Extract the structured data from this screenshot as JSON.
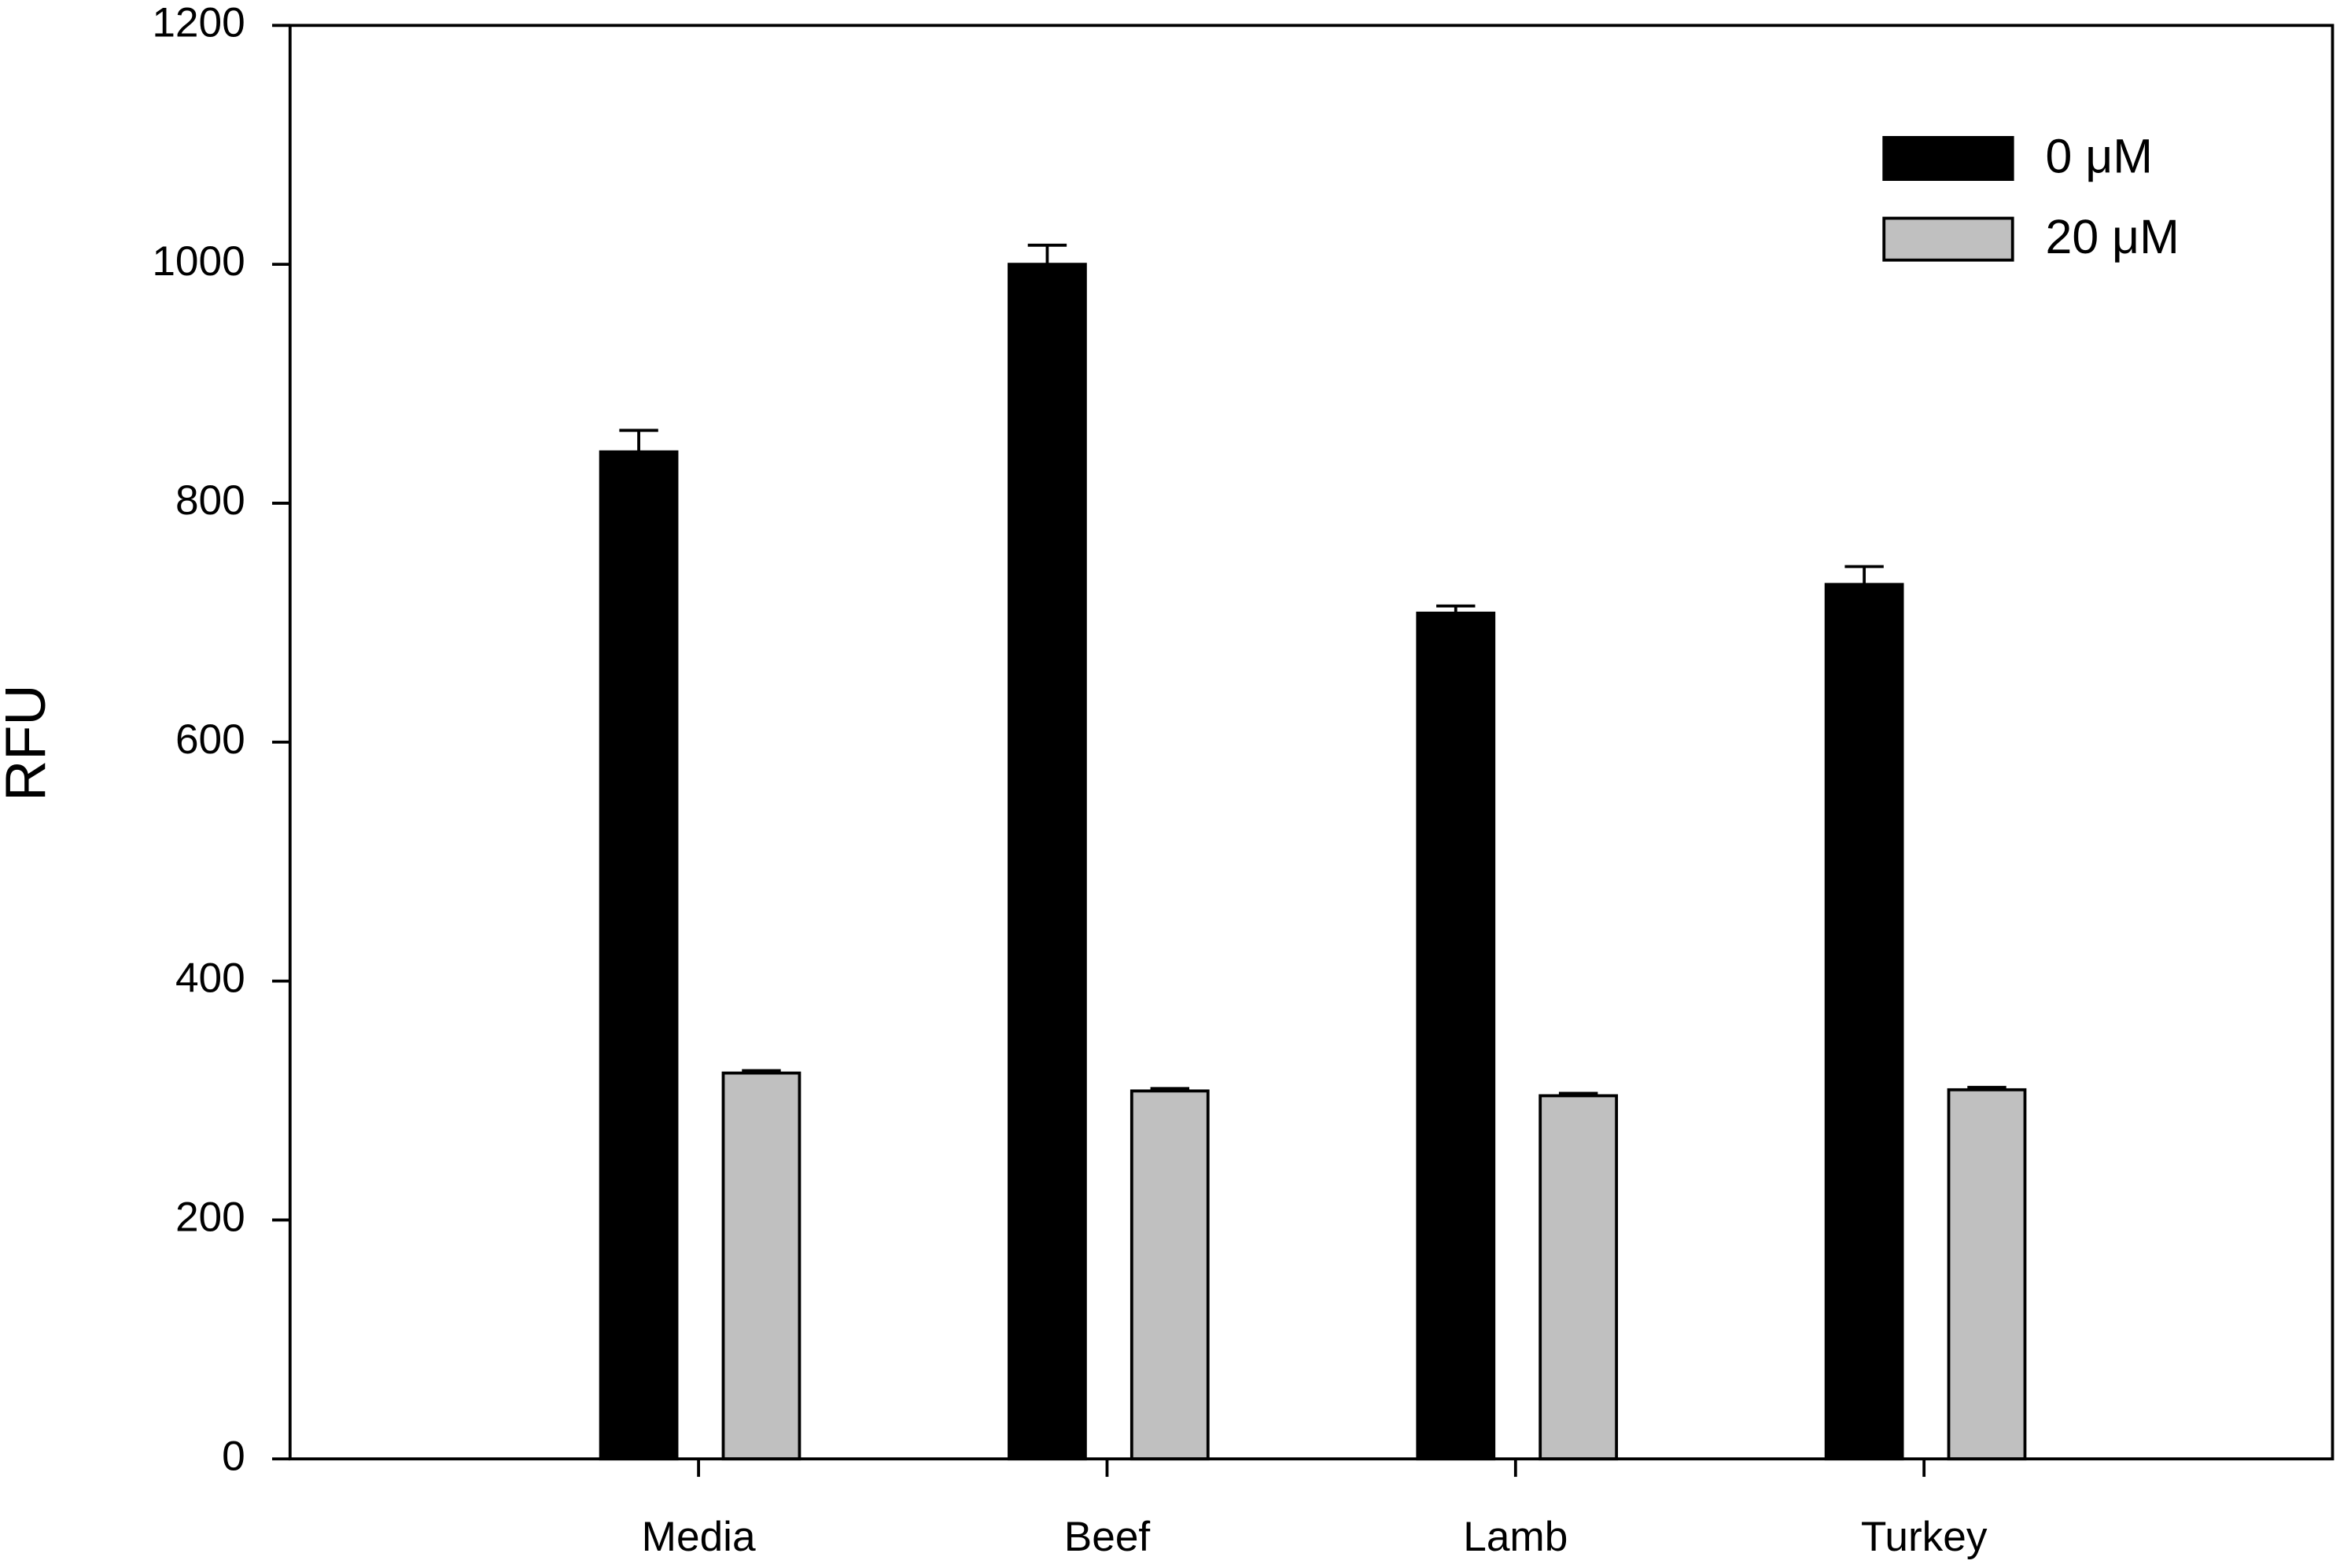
{
  "chart_data": {
    "type": "bar",
    "y_label": "RFU",
    "categories": [
      "Media",
      "Beef",
      "Lamb",
      "Turkey"
    ],
    "series": [
      {
        "name": "0 μM",
        "color": "#000000",
        "values": [
          843,
          1000,
          708,
          732
        ],
        "errors": [
          18,
          16,
          6,
          15
        ]
      },
      {
        "name": "20 μM",
        "color": "#c0c0c0",
        "values": [
          323,
          308,
          304,
          309
        ],
        "errors": [
          2,
          2,
          2,
          2
        ]
      }
    ],
    "ylim": [
      0,
      1200
    ],
    "yticks": [
      0,
      200,
      400,
      600,
      800,
      1000,
      1200
    ],
    "legend": "upper right"
  }
}
